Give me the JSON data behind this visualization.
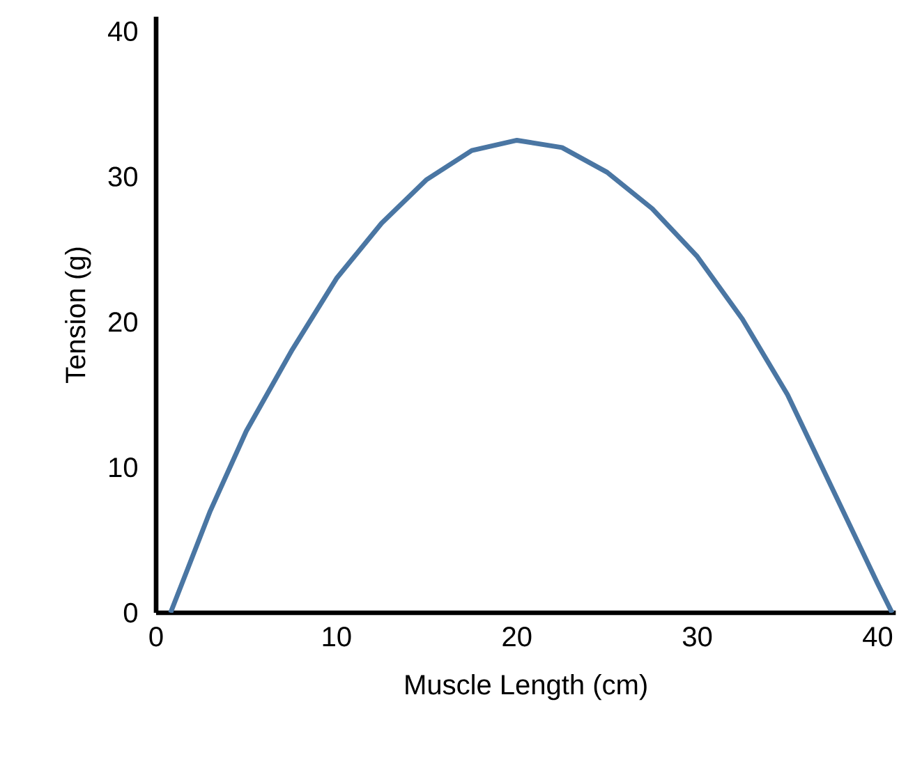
{
  "chart_data": {
    "type": "line",
    "xlabel": "Muscle Length (cm)",
    "ylabel": "Tension (g)",
    "xlim": [
      0,
      41
    ],
    "ylim": [
      0,
      41
    ],
    "xticks": [
      0,
      10,
      20,
      30,
      40
    ],
    "yticks": [
      0,
      10,
      20,
      30,
      40
    ],
    "grid": false,
    "marker": "none",
    "line_style": "solid",
    "series": [
      {
        "color": "#4a76a3",
        "x": [
          0.8,
          3,
          5,
          7.5,
          10,
          12.5,
          15,
          17.5,
          20,
          22.5,
          25,
          27.5,
          30,
          32.5,
          35,
          37.5,
          40,
          40.8
        ],
        "values": [
          0,
          7,
          12.5,
          18,
          23,
          26.8,
          29.8,
          31.8,
          32.5,
          32,
          30.3,
          27.8,
          24.5,
          20.2,
          15,
          8.5,
          2,
          0
        ]
      }
    ]
  }
}
